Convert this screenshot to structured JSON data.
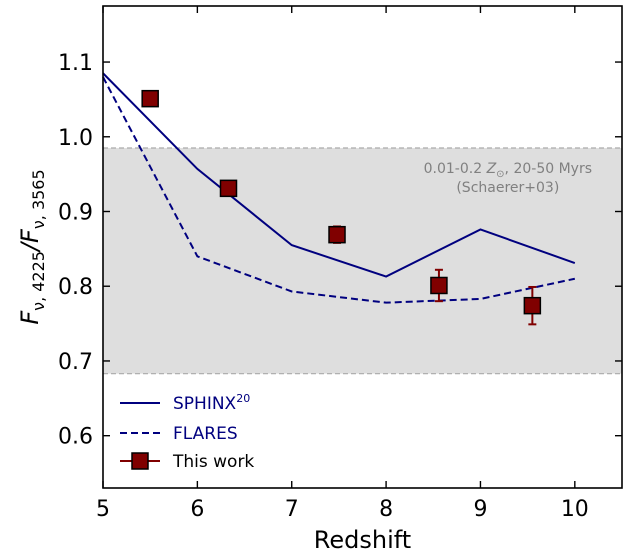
{
  "chart_data": {
    "type": "line",
    "xlabel": "Redshift",
    "ylabel": "F_{ν, 4225}/F_{ν, 3565}",
    "ylabel_parts": {
      "main": "F",
      "sub1": "ν, 4225",
      "slash": "/F",
      "sub2": "ν, 3565"
    },
    "xlim": [
      5,
      10.5
    ],
    "ylim": [
      0.53,
      1.175
    ],
    "x_ticks": [
      5,
      6,
      7,
      8,
      9,
      10
    ],
    "y_ticks": [
      0.6,
      0.7,
      0.8,
      0.9,
      1.0,
      1.1
    ],
    "y_tick_labels": [
      "0.6",
      "0.7",
      "0.8",
      "0.9",
      "1.0",
      "1.1"
    ],
    "grid": false,
    "band": {
      "ymin": 0.683,
      "ymax": 0.985,
      "color": "#dedede",
      "label_line1_pre": "0.01-0.2 ",
      "label_line1_sym": "Z",
      "label_line1_sub": "⊙",
      "label_line1_post": ", 20-50 Myrs",
      "label_line2": "(Schaerer+03)"
    },
    "series": [
      {
        "name": "SPHINX",
        "name_sup": "20",
        "style": "solid",
        "color": "#00007f",
        "x": [
          5,
          6,
          7,
          8,
          9,
          10
        ],
        "y": [
          1.085,
          0.957,
          0.855,
          0.813,
          0.876,
          0.831
        ]
      },
      {
        "name": "FLARES",
        "style": "dashed",
        "color": "#00007f",
        "x": [
          5,
          5.5,
          6,
          7,
          8,
          9,
          10
        ],
        "y": [
          1.08,
          0.96,
          0.84,
          0.793,
          0.778,
          0.783,
          0.81
        ]
      },
      {
        "name": "This work",
        "style": "markers",
        "color": "#800000",
        "x": [
          5.5,
          6.33,
          7.48,
          8.56,
          9.55
        ],
        "y": [
          1.051,
          0.931,
          0.869,
          0.801,
          0.774
        ],
        "yerr": [
          0.0,
          0.0,
          0.011,
          0.021,
          0.025
        ]
      }
    ],
    "legend_position": "lower-left",
    "colors": {
      "navy": "#00007f",
      "maroon": "#800000",
      "band": "#dedede",
      "band_edge": "#aaaaaa",
      "band_text": "#808080"
    }
  }
}
